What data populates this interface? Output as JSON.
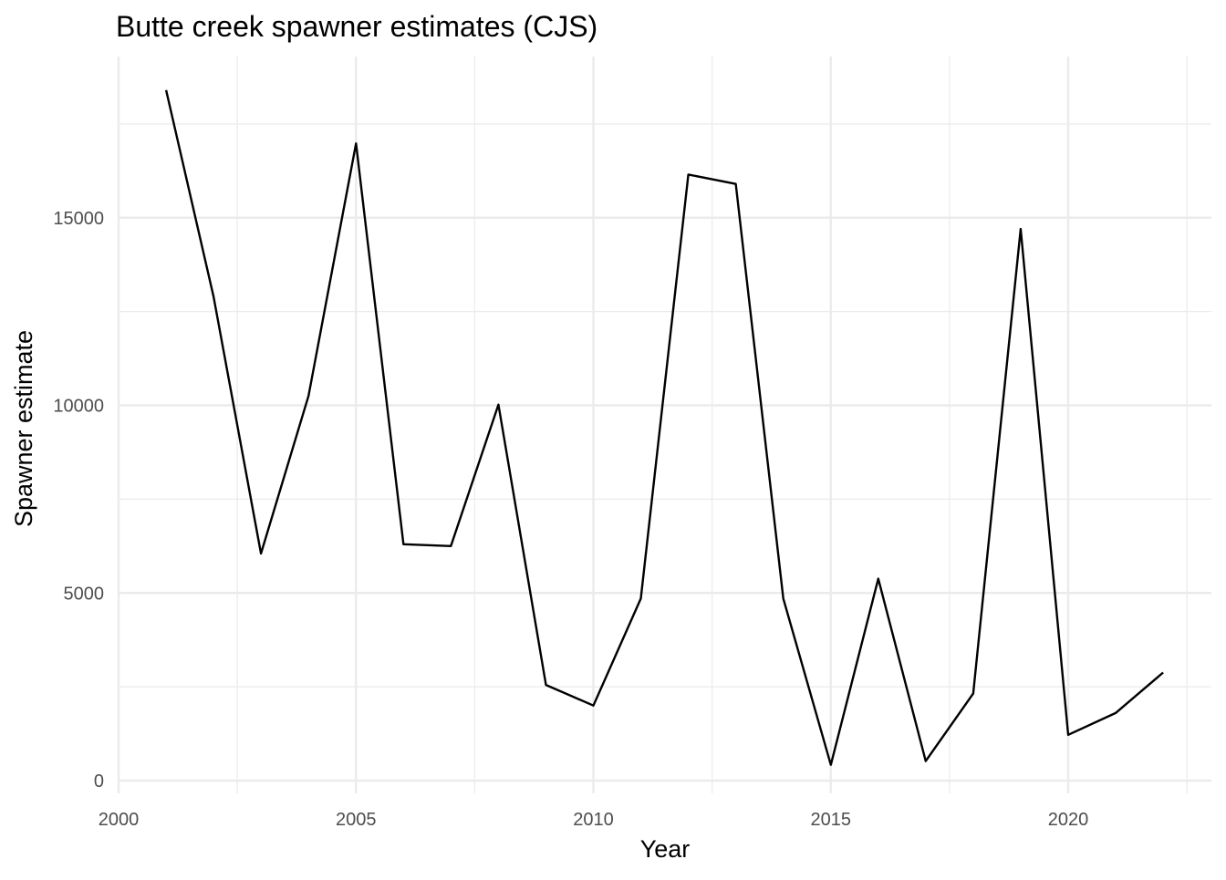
{
  "chart_data": {
    "type": "line",
    "title": "Butte creek spawner estimates (CJS)",
    "xlabel": "Year",
    "ylabel": "Spawner estimate",
    "xlim": [
      2000,
      2022.5
    ],
    "ylim": [
      -300,
      19000
    ],
    "x_ticks": [
      2000,
      2005,
      2010,
      2015,
      2020
    ],
    "y_ticks": [
      0,
      5000,
      10000,
      15000
    ],
    "x_tick_labels": [
      "2000",
      "2005",
      "2010",
      "2015",
      "2020"
    ],
    "y_tick_labels": [
      "0",
      "5000",
      "10000",
      "15000"
    ],
    "x_minor_ticks": [
      2002.5,
      2007.5,
      2012.5,
      2017.5,
      2022.5
    ],
    "y_minor_ticks": [
      2500,
      7500,
      12500,
      17500
    ],
    "grid": true,
    "legend": "none",
    "line_color": "#000000",
    "series": [
      {
        "x": [
          2001,
          2002,
          2003,
          2004,
          2005,
          2006,
          2007,
          2008,
          2009,
          2010,
          2011,
          2012,
          2013,
          2014,
          2015,
          2016,
          2017,
          2018,
          2019,
          2020,
          2021,
          2022
        ],
        "y": [
          18400,
          12900,
          6050,
          10250,
          16980,
          6300,
          6250,
          10020,
          2550,
          2000,
          4850,
          16150,
          15900,
          4850,
          420,
          5380,
          520,
          2320,
          14700,
          1220,
          1800,
          2880
        ]
      }
    ]
  }
}
